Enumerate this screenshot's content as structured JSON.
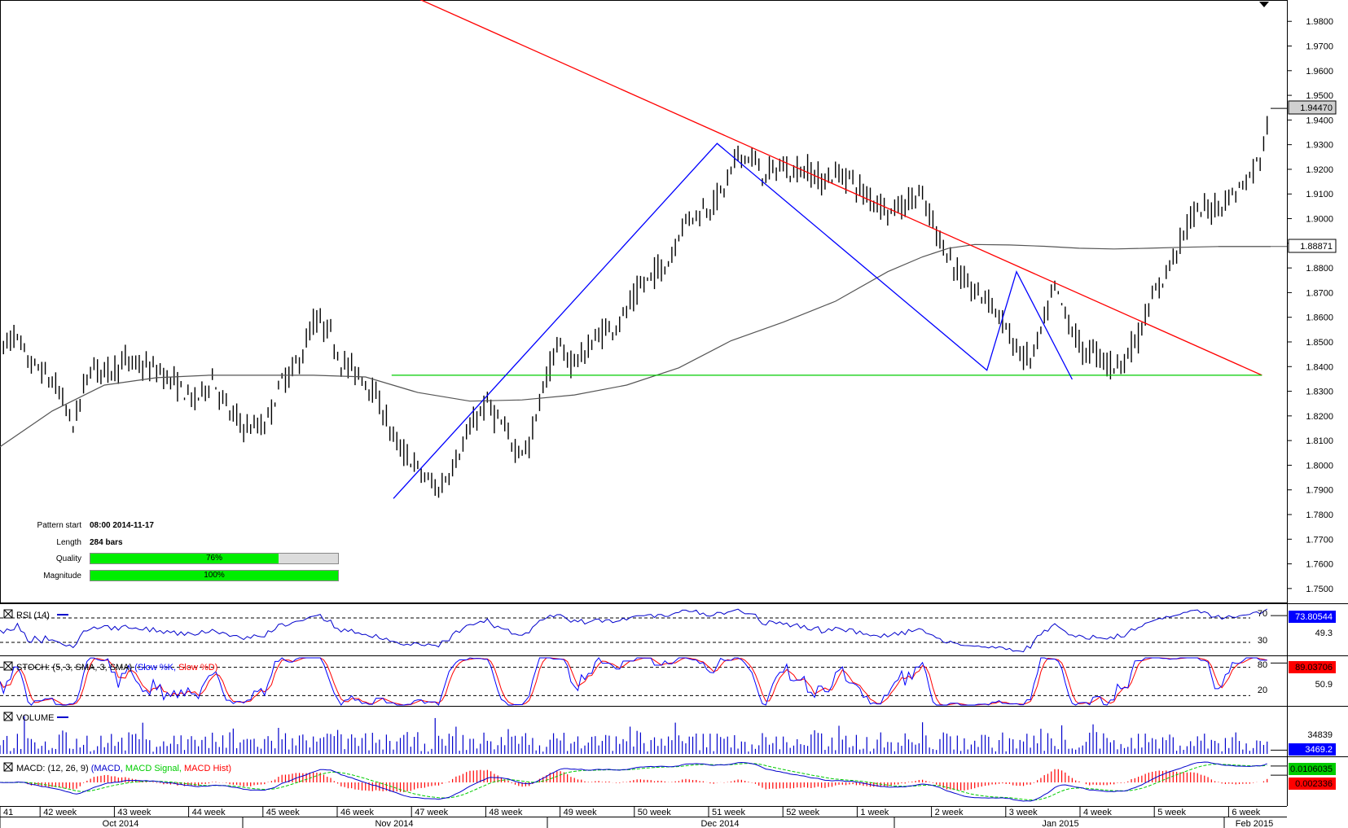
{
  "chart_data": {
    "type": "candlestick",
    "instrument_scale": {
      "ylim": [
        1.745,
        1.988
      ],
      "ticks": [
        "1.9800",
        "1.9700",
        "1.9600",
        "1.9500",
        "1.9400",
        "1.9300",
        "1.9200",
        "1.9100",
        "1.9000",
        "1.8900",
        "1.8800",
        "1.8700",
        "1.8600",
        "1.8500",
        "1.8400",
        "1.8300",
        "1.8200",
        "1.8100",
        "1.8000",
        "1.7900",
        "1.7800",
        "1.7700",
        "1.7600",
        "1.7500"
      ],
      "last_price": "1.94470",
      "last_price_value": 1.9447,
      "ma_value": "1.88871",
      "ma_value_num": 1.88871
    },
    "price_path": [
      [
        0,
        1.846
      ],
      [
        8,
        1.853
      ],
      [
        16,
        1.842
      ],
      [
        24,
        1.838
      ],
      [
        33,
        1.831
      ],
      [
        42,
        1.816
      ],
      [
        52,
        1.84
      ],
      [
        62,
        1.838
      ],
      [
        72,
        1.842
      ],
      [
        82,
        1.84
      ],
      [
        92,
        1.838
      ],
      [
        102,
        1.832
      ],
      [
        112,
        1.826
      ],
      [
        122,
        1.835
      ],
      [
        132,
        1.821
      ],
      [
        142,
        1.815
      ],
      [
        152,
        1.816
      ],
      [
        162,
        1.834
      ],
      [
        172,
        1.842
      ],
      [
        180,
        1.858
      ],
      [
        188,
        1.856
      ],
      [
        196,
        1.842
      ],
      [
        204,
        1.838
      ],
      [
        212,
        1.833
      ],
      [
        220,
        1.822
      ],
      [
        228,
        1.808
      ],
      [
        236,
        1.802
      ],
      [
        244,
        1.795
      ],
      [
        252,
        1.79
      ],
      [
        258,
        1.797
      ],
      [
        266,
        1.808
      ],
      [
        274,
        1.82
      ],
      [
        280,
        1.825
      ],
      [
        288,
        1.816
      ],
      [
        296,
        1.807
      ],
      [
        304,
        1.807
      ],
      [
        312,
        1.832
      ],
      [
        320,
        1.848
      ],
      [
        328,
        1.842
      ],
      [
        336,
        1.845
      ],
      [
        344,
        1.853
      ],
      [
        352,
        1.856
      ],
      [
        360,
        1.862
      ],
      [
        368,
        1.872
      ],
      [
        376,
        1.878
      ],
      [
        384,
        1.882
      ],
      [
        392,
        1.898
      ],
      [
        400,
        1.902
      ],
      [
        408,
        1.905
      ],
      [
        416,
        1.912
      ],
      [
        424,
        1.926
      ],
      [
        432,
        1.924
      ],
      [
        440,
        1.917
      ],
      [
        448,
        1.921
      ],
      [
        456,
        1.919
      ],
      [
        464,
        1.92
      ],
      [
        472,
        1.915
      ],
      [
        480,
        1.918
      ],
      [
        488,
        1.917
      ],
      [
        496,
        1.91
      ],
      [
        504,
        1.907
      ],
      [
        512,
        1.903
      ],
      [
        520,
        1.906
      ],
      [
        528,
        1.91
      ],
      [
        536,
        1.898
      ],
      [
        544,
        1.886
      ],
      [
        552,
        1.876
      ],
      [
        560,
        1.87
      ],
      [
        568,
        1.868
      ],
      [
        576,
        1.858
      ],
      [
        584,
        1.847
      ],
      [
        592,
        1.842
      ],
      [
        600,
        1.858
      ],
      [
        606,
        1.872
      ],
      [
        614,
        1.858
      ],
      [
        622,
        1.846
      ],
      [
        630,
        1.846
      ],
      [
        638,
        1.84
      ],
      [
        646,
        1.843
      ],
      [
        654,
        1.852
      ],
      [
        660,
        1.864
      ],
      [
        668,
        1.875
      ],
      [
        676,
        1.888
      ],
      [
        684,
        1.9
      ],
      [
        692,
        1.904
      ],
      [
        700,
        1.905
      ],
      [
        708,
        1.91
      ],
      [
        716,
        1.915
      ],
      [
        724,
        1.925
      ],
      [
        730,
        1.944
      ]
    ],
    "total_bars": 730,
    "moving_average": [
      [
        0,
        1.8075
      ],
      [
        30,
        1.822
      ],
      [
        60,
        1.8325
      ],
      [
        90,
        1.8355
      ],
      [
        120,
        1.8365
      ],
      [
        150,
        1.8365
      ],
      [
        180,
        1.8365
      ],
      [
        210,
        1.8358
      ],
      [
        240,
        1.8295
      ],
      [
        270,
        1.826
      ],
      [
        300,
        1.8265
      ],
      [
        330,
        1.8285
      ],
      [
        360,
        1.8325
      ],
      [
        390,
        1.8395
      ],
      [
        420,
        1.8505
      ],
      [
        450,
        1.858
      ],
      [
        480,
        1.8665
      ],
      [
        510,
        1.8785
      ],
      [
        530,
        1.8845
      ],
      [
        545,
        1.888
      ],
      [
        560,
        1.8895
      ],
      [
        580,
        1.8893
      ],
      [
        600,
        1.8888
      ],
      [
        620,
        1.888
      ],
      [
        640,
        1.8877
      ],
      [
        660,
        1.888
      ],
      [
        680,
        1.8884
      ],
      [
        700,
        1.8887
      ],
      [
        730,
        1.8887
      ]
    ],
    "pattern_lines": {
      "resistance": {
        "color": "#ff0000",
        "points": [
          [
            225,
            1.994
          ],
          [
            725,
            1.8365
          ]
        ]
      },
      "support": {
        "color": "#00cc00",
        "points": [
          [
            225,
            1.8365
          ],
          [
            725,
            1.8365
          ]
        ]
      },
      "zigzag": {
        "color": "#0000ff",
        "points": [
          [
            226,
            1.7865
          ],
          [
            412,
            1.9305
          ],
          [
            567,
            1.8385
          ],
          [
            584,
            1.8785
          ],
          [
            616,
            1.8348
          ]
        ]
      }
    },
    "x_axis": {
      "weeks": [
        "41",
        "42 week",
        "43 week",
        "44 week",
        "45 week",
        "46 week",
        "47 week",
        "48 week",
        "49 week",
        "50 week",
        "51 week",
        "52 week",
        "1 week",
        "2 week",
        "3 week",
        "4 week",
        "5 week",
        "6 week"
      ],
      "months": [
        "Oct 2014",
        "Nov 2014",
        "Dec 2014",
        "Jan 2015",
        "Feb 2015"
      ]
    },
    "indicators": {
      "rsi": {
        "title": "RSI (14)",
        "levels": [
          "70",
          "30"
        ],
        "value": "73.80544",
        "value_num": 73.80544,
        "level_mid": "49.3",
        "ylim": [
          10,
          90
        ]
      },
      "stoch": {
        "title_prefix": "STOCH: (5, 3, SMA, 3, SMA)",
        "title_k": "(Slow %K,",
        "title_d": "Slow %D)",
        "levels": [
          "80",
          "20"
        ],
        "value": "89.03706",
        "value_num": 89.03706,
        "level_mid": "50.9",
        "ylim": [
          0,
          100
        ]
      },
      "volume": {
        "title": "VOLUME",
        "value_top": "34839",
        "value": "3469.2",
        "value_num": 3469.2
      },
      "macd": {
        "title_prefix": "MACD: (12, 26, 9)",
        "title_macd": "(MACD,",
        "title_signal": "MACD Signal,",
        "title_hist": "MACD Hist)",
        "value_macd": "0.0106035",
        "value_macd_num": 0.0106035,
        "value_hist": "0.002336",
        "value_hist_num": 0.002336
      }
    },
    "pattern_info": {
      "start_label": "Pattern start",
      "start_value": "08:00 2014-11-17",
      "length_label": "Length",
      "length_value": "284 bars",
      "quality_label": "Quality",
      "quality_value": "76%",
      "quality_fraction": 0.76,
      "magnitude_label": "Magnitude",
      "magnitude_value": "100%",
      "magnitude_fraction": 1.0
    },
    "colors": {
      "candles": "#000000",
      "ma": "#555555",
      "rsi": "#0000cc",
      "stoch_k": "#0000ff",
      "stoch_d": "#ff0000",
      "volume": "#0000cc",
      "macd": "#0000cc",
      "macd_signal": "#00cc00",
      "macd_hist": "#ff0000",
      "rsi_badge": "#0000ff",
      "stoch_badge": "#ff0000",
      "macd_badge": "#00cc00",
      "hist_badge": "#ff0000",
      "last_badge": "#d0d0d0"
    }
  }
}
